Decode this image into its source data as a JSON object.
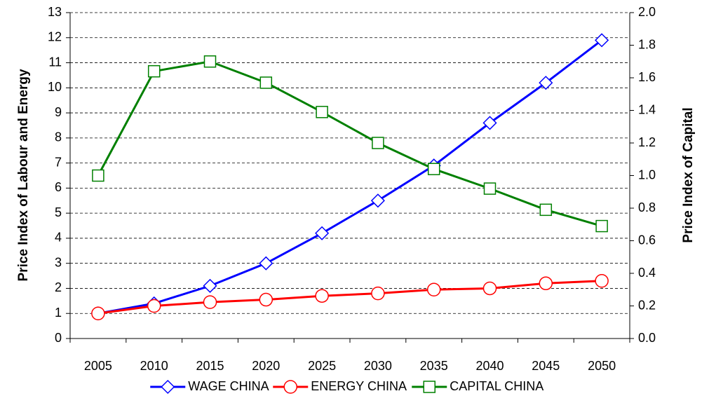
{
  "chart_data": {
    "type": "line",
    "categories": [
      "2005",
      "2010",
      "2015",
      "2020",
      "2025",
      "2030",
      "2035",
      "2040",
      "2045",
      "2050"
    ],
    "series": [
      {
        "name": "WAGE CHINA",
        "color": "#0000ff",
        "marker": "diamond",
        "values": [
          1.0,
          1.4,
          2.1,
          3.0,
          4.2,
          5.5,
          6.9,
          8.6,
          10.2,
          11.9
        ]
      },
      {
        "name": "ENERGY CHINA",
        "color": "#ff0000",
        "marker": "circle",
        "values": [
          1.0,
          1.3,
          1.45,
          1.55,
          1.7,
          1.8,
          1.95,
          2.0,
          2.2,
          2.3
        ]
      },
      {
        "name": "CAPITAL CHINA",
        "color": "#008000",
        "marker": "square",
        "axis": "y2",
        "values": [
          1.0,
          1.64,
          1.7,
          1.57,
          1.39,
          1.2,
          1.04,
          0.92,
          0.79,
          0.69
        ]
      }
    ],
    "ylabel": "Price Index of Labour and Energy",
    "y2label": "Price Index of Capital",
    "ylim": [
      0,
      13
    ],
    "yticks": [
      0,
      1,
      2,
      3,
      4,
      5,
      6,
      7,
      8,
      9,
      10,
      11,
      12,
      13
    ],
    "y2lim": [
      0,
      2
    ],
    "y2ticks": [
      {
        "value": 0,
        "label": "0.0"
      },
      0.2,
      0.4,
      0.6,
      0.8,
      {
        "value": 1,
        "label": "1.0"
      },
      1.2,
      1.4,
      1.6,
      1.8,
      {
        "value": 2,
        "label": "2.0"
      }
    ],
    "grid": true,
    "legend": "bottom"
  }
}
